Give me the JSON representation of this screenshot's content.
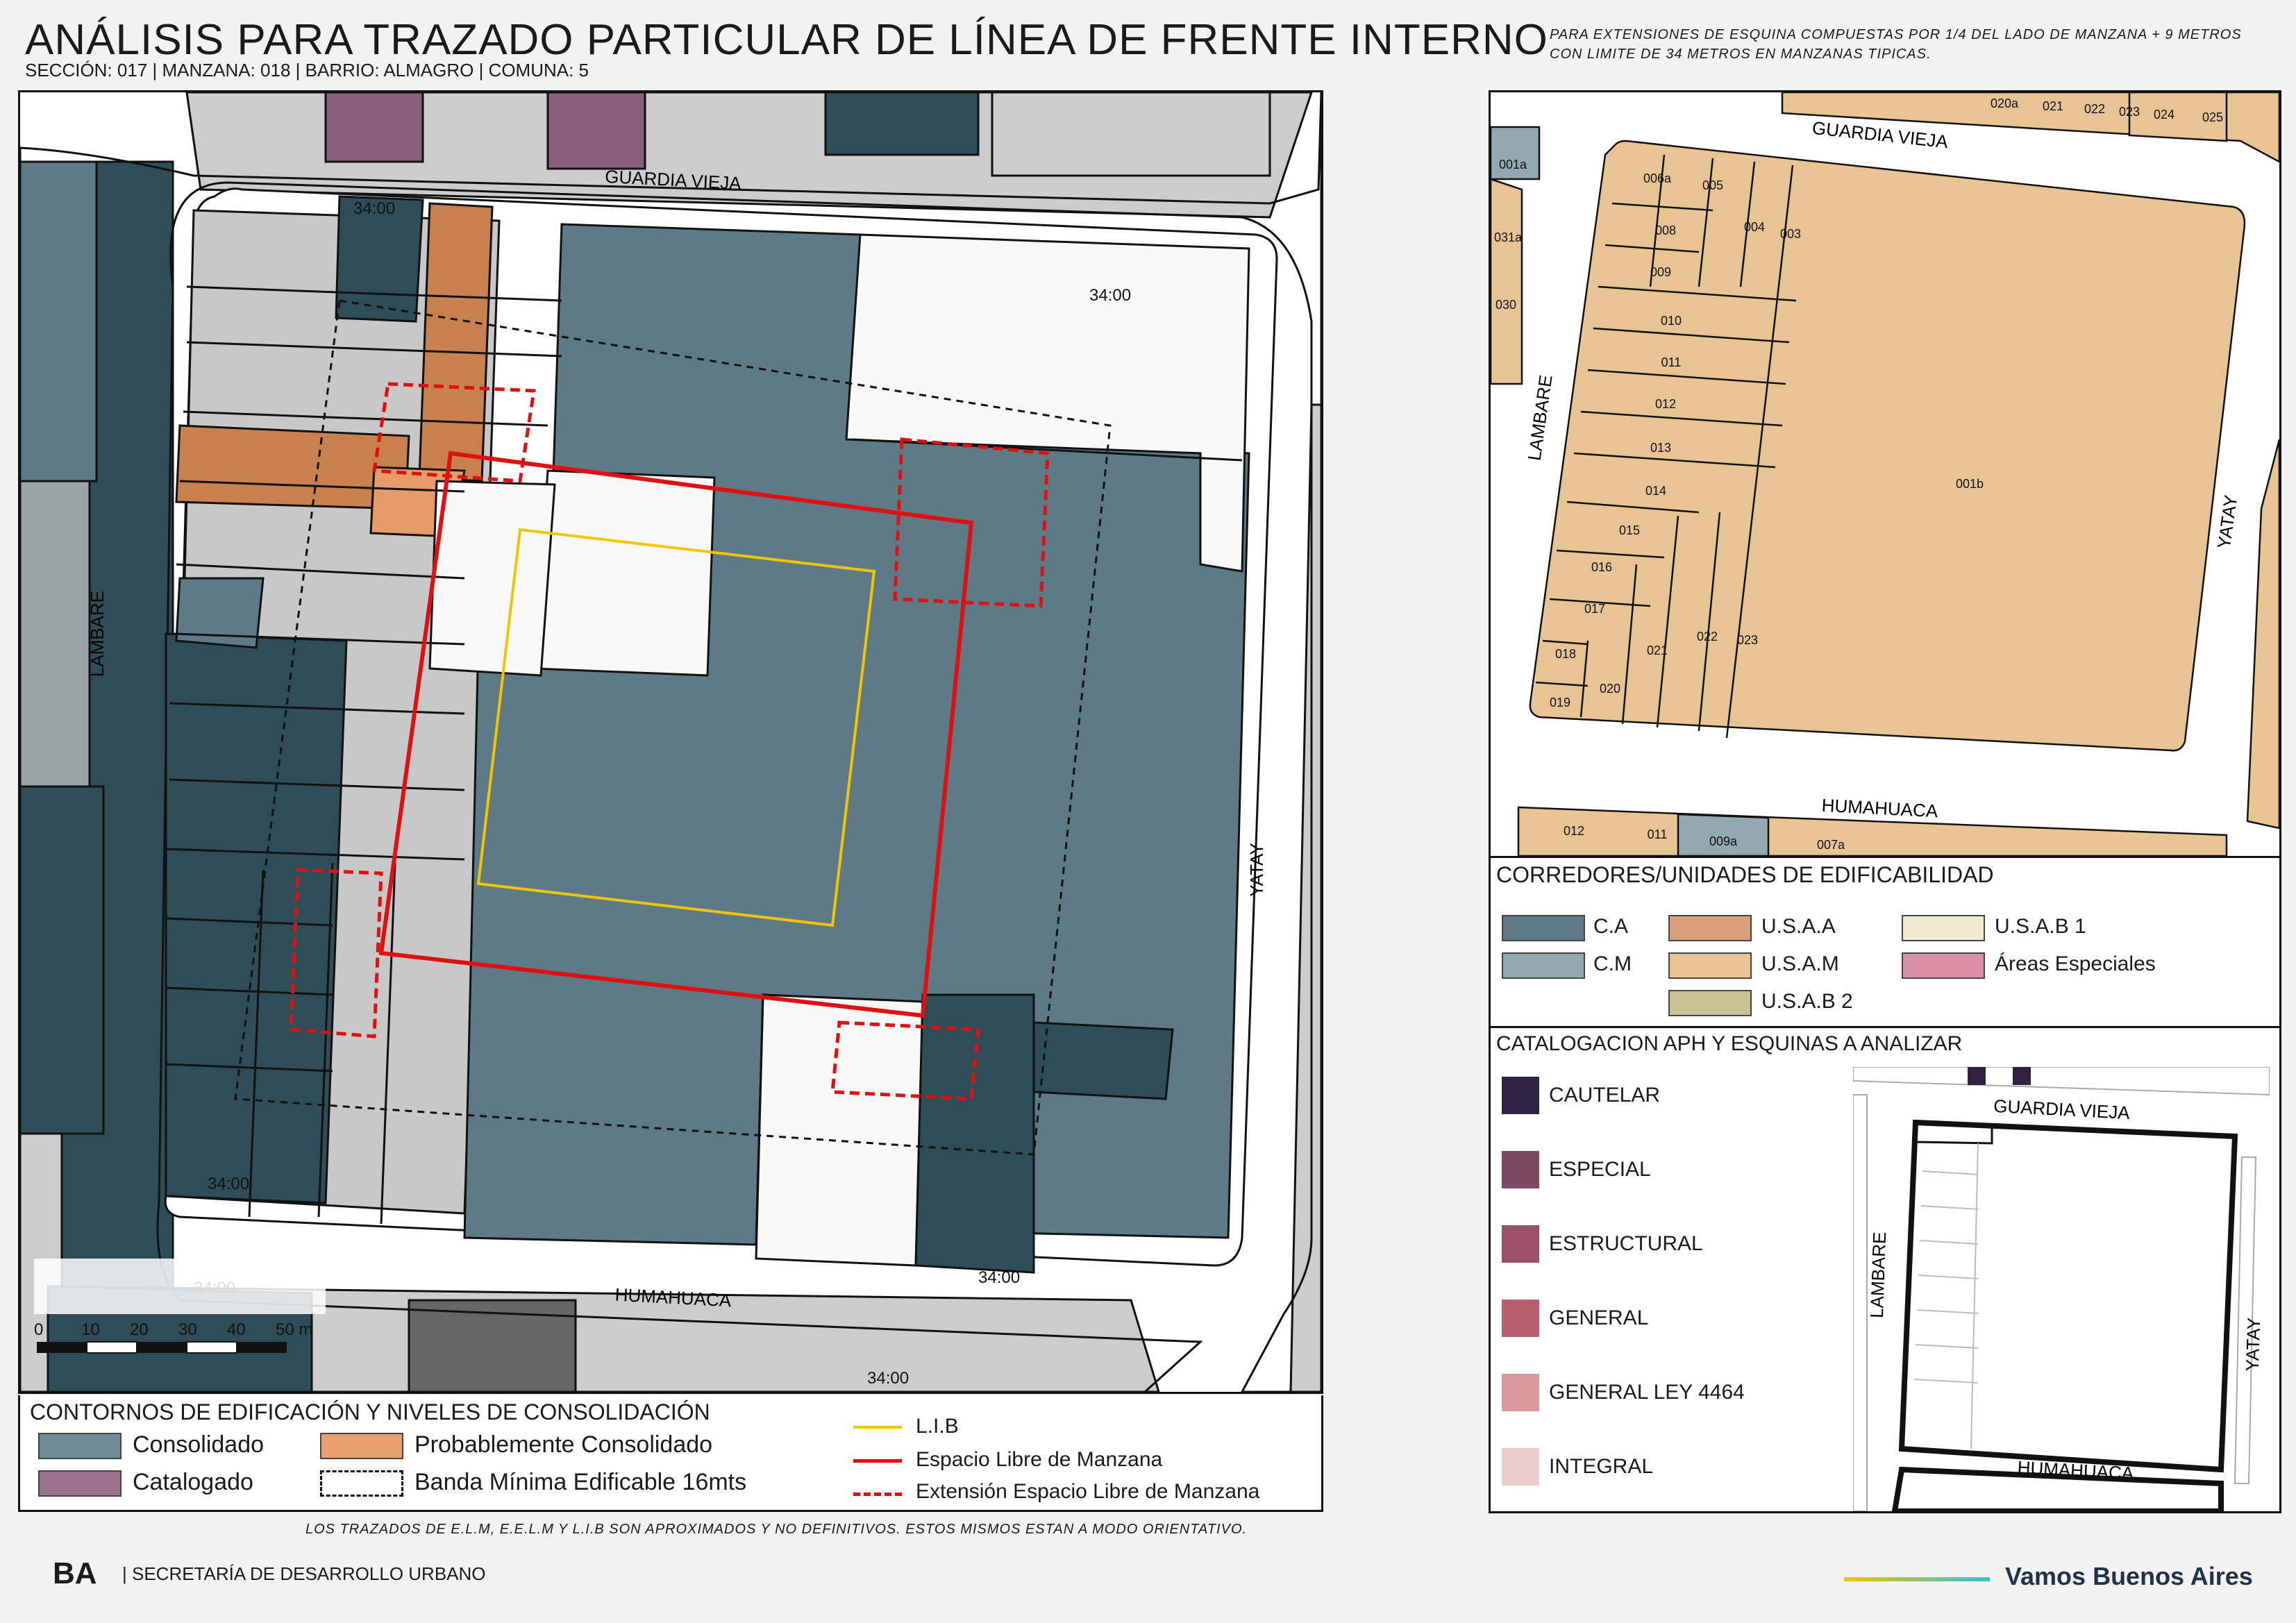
{
  "header": {
    "title": "ANÁLISIS PARA TRAZADO PARTICULAR DE LÍNEA DE FRENTE INTERNO",
    "subtitle": "SECCIÓN: 017 |  MANZANA: 018 | BARRIO: ALMAGRO | COMUNA: 5",
    "note": "PARA EXTENSIONES DE ESQUINA COMPUESTAS POR 1/4 DEL LADO DE MANZANA + 9 METROS CON LIMITE DE 34 METROS EN MANZANAS TIPICAS."
  },
  "main_map": {
    "streets": {
      "north": "GUARDIA VIEJA",
      "south": "HUMAHUACA",
      "west": "LAMBARE",
      "east": "YATAY"
    },
    "dimension_label": "34:00",
    "scale": {
      "ticks": [
        "0",
        "10",
        "20",
        "30",
        "40",
        "50 m"
      ]
    }
  },
  "legend_contours": {
    "title": "CONTORNOS DE EDIFICACIÓN Y NIVELES DE CONSOLIDACIÓN",
    "consolidado": "Consolidado",
    "probablemente": "Probablemente Consolidado",
    "catalogado": "Catalogado",
    "banda": "Banda Mínima Edificable 16mts",
    "lib": "L.I.B",
    "elm": "Espacio Libre de Manzana",
    "eelm": "Extensión Espacio Libre de Manzana"
  },
  "disclaimer": "LOS TRAZADOS DE E.L.M, E.E.L.M Y L.I.B SON APROXIMADOS Y NO DEFINITIVOS. ESTOS MISMOS ESTAN A MODO ORIENTATIVO.",
  "parcel_map": {
    "streets": {
      "north": "GUARDIA VIEJA",
      "south": "HUMAHUACA",
      "west": "LAMBARE",
      "east": "YATAY"
    },
    "top_parcels": [
      "020a",
      "021",
      "022",
      "023",
      "024",
      "025"
    ],
    "left_parcels": [
      "001a",
      "031a",
      "030"
    ],
    "parcels": [
      "006a",
      "005",
      "004",
      "003",
      "008",
      "009",
      "010",
      "011",
      "012",
      "013",
      "014",
      "015",
      "016",
      "017",
      "018",
      "019",
      "020",
      "021",
      "022",
      "023",
      "001b"
    ],
    "bottom_parcels": [
      "012",
      "011",
      "009a",
      "007a"
    ]
  },
  "corredores": {
    "title": "CORREDORES/UNIDADES DE EDIFICABILIDAD",
    "items": [
      {
        "label": "C.A",
        "color": "#5d7a86"
      },
      {
        "label": "C.M",
        "color": "#92a9b0"
      },
      {
        "label": "U.S.A.A",
        "color": "#d9a07c"
      },
      {
        "label": "U.S.A.M",
        "color": "#e8c494"
      },
      {
        "label": "U.S.A.B 2",
        "color": "#c9c295"
      },
      {
        "label": "U.S.A.B 1",
        "color": "#f0ead2"
      },
      {
        "label": "Áreas Especiales",
        "color": "#d98fa6"
      }
    ]
  },
  "catalogacion": {
    "title": "CATALOGACION APH Y ESQUINAS A ANALIZAR",
    "items": [
      {
        "label": "CAUTELAR",
        "color": "#2f2245"
      },
      {
        "label": "ESPECIAL",
        "color": "#7a4a63"
      },
      {
        "label": "ESTRUCTURAL",
        "color": "#9a5068"
      },
      {
        "label": "GENERAL",
        "color": "#b8606e"
      },
      {
        "label": "GENERAL LEY 4464",
        "color": "#d89a9c"
      },
      {
        "label": "INTEGRAL",
        "color": "#ecccc8"
      }
    ],
    "mini_map_streets": {
      "north": "GUARDIA VIEJA",
      "south": "HUMAHUACA",
      "west": "LAMBARE",
      "east": "YATAY"
    }
  },
  "footer": {
    "logo": "BA",
    "agency": "| SECRETARÍA DE DESARROLLO URBANO",
    "slogan": "Vamos Buenos Aires"
  },
  "colors": {
    "consolidado": "#5d7a86",
    "dark_building": "#2f4d58",
    "probable": "#c9804f",
    "catalogado": "#8c607d",
    "lib": "#f2c500",
    "elm": "#e01010",
    "parcel_fill": "#e8c494"
  }
}
